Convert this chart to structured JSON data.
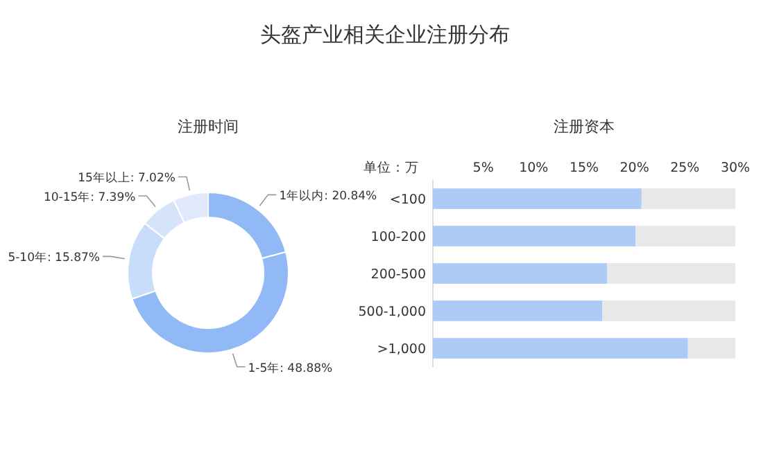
{
  "chart_data": [
    {
      "type": "donut",
      "title": "头盔产业相关企业注册分布",
      "subtitle": "注册时间",
      "categories": [
        "1年以内",
        "1-5年",
        "5-10年",
        "10-15年",
        "15年以上"
      ],
      "values": [
        20.84,
        48.88,
        15.87,
        7.39,
        7.02
      ],
      "value_labels": [
        "20.84%",
        "48.88%",
        "15.87%",
        "7.39%",
        "7.02%"
      ],
      "colors": [
        "#90b9f6",
        "#90b9f6",
        "#c9dcf9",
        "#d6e4fa",
        "#dfe9fb"
      ]
    },
    {
      "type": "bar",
      "orientation": "horizontal",
      "title": "注册资本",
      "ylabel": "单位：万",
      "categories": [
        "<100",
        "100-200",
        "200-500",
        "500-1,000",
        ">1,000"
      ],
      "stacked": true,
      "series": [
        {
          "color": "#aecbf7",
          "values": [
            20.7,
            20.1,
            17.3,
            16.8,
            25.3
          ]
        },
        {
          "color": "#e8e8e8",
          "values": [
            9.3,
            9.9,
            12.7,
            13.2,
            4.7
          ]
        }
      ],
      "xlim": [
        0,
        30
      ],
      "xticks": [
        {
          "value": 5,
          "label": "5%"
        },
        {
          "value": 10,
          "label": "10%"
        },
        {
          "value": 15,
          "label": "15%"
        },
        {
          "value": 20,
          "label": "20%"
        },
        {
          "value": 25,
          "label": "25%"
        },
        {
          "value": 30,
          "label": "30%"
        }
      ]
    }
  ]
}
